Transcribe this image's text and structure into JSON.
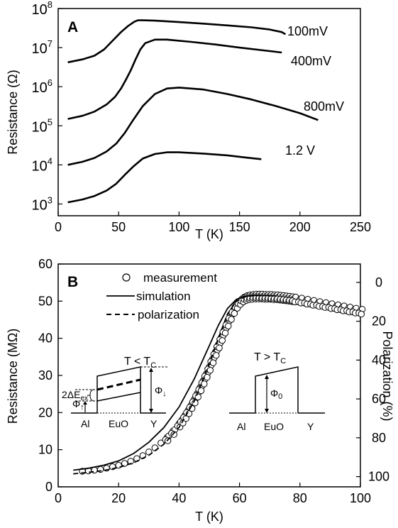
{
  "chart_data": [
    {
      "panel": "A",
      "type": "line",
      "xlabel": "T (K)",
      "ylabel": "Resistance (Ω)",
      "yscale": "log",
      "xlim": [
        0,
        250
      ],
      "ylim": [
        500,
        100000000
      ],
      "x_ticks": [
        0,
        50,
        100,
        150,
        200,
        250
      ],
      "y_ticks": [
        {
          "exp": 3,
          "value": 1000
        },
        {
          "exp": 4,
          "value": 10000
        },
        {
          "exp": 5,
          "value": 100000
        },
        {
          "exp": 6,
          "value": 1000000
        },
        {
          "exp": 7,
          "value": 10000000
        },
        {
          "exp": 8,
          "value": 100000000
        }
      ],
      "series": [
        {
          "name": "100mV",
          "x": [
            8,
            20,
            30,
            38,
            45,
            52,
            58,
            63,
            66,
            70,
            80,
            100,
            120,
            140,
            160,
            175,
            185,
            188
          ],
          "y": [
            4200000,
            5000000,
            6200000,
            9000000,
            15000000,
            25000000,
            36000000,
            46000000,
            50000000,
            50000000,
            49000000,
            45000000,
            41000000,
            37000000,
            33000000,
            29000000,
            25000000,
            22000000
          ]
        },
        {
          "name": "400mV",
          "x": [
            8,
            20,
            30,
            40,
            47,
            52,
            56,
            60,
            64,
            68,
            72,
            80,
            90,
            110,
            130,
            150,
            170,
            185
          ],
          "y": [
            150000,
            180000,
            230000,
            350000,
            550000,
            900000,
            1500000,
            2600000,
            5000000,
            9000000,
            13000000,
            16000000,
            16000000,
            14000000,
            12000000,
            10000000,
            8500000,
            7500000
          ]
        },
        {
          "name": "800mV",
          "x": [
            8,
            20,
            30,
            40,
            48,
            55,
            62,
            70,
            80,
            90,
            100,
            120,
            140,
            160,
            180,
            200,
            215
          ],
          "y": [
            10000,
            12000,
            15000,
            22000,
            35000,
            65000,
            140000,
            320000,
            650000,
            900000,
            950000,
            850000,
            650000,
            470000,
            320000,
            210000,
            140000
          ]
        },
        {
          "name": "1.2 V",
          "x": [
            8,
            20,
            30,
            40,
            48,
            55,
            62,
            70,
            80,
            90,
            100,
            120,
            140,
            155,
            168
          ],
          "y": [
            1100,
            1300,
            1600,
            2200,
            3300,
            5500,
            9000,
            14500,
            19000,
            21000,
            21000,
            19500,
            17500,
            15500,
            14000
          ]
        }
      ],
      "annotations": [
        "A"
      ]
    },
    {
      "panel": "B",
      "type": "scatter",
      "xlabel": "T (K)",
      "ylabel": "Resistance (MΩ)",
      "y2label": "Polarization (%)",
      "xlim": [
        0,
        100
      ],
      "ylim": [
        0,
        60
      ],
      "y2lim_inverted": [
        105.26,
        -9.47
      ],
      "x_ticks": [
        0,
        20,
        40,
        60,
        80,
        100
      ],
      "y_ticks": [
        0,
        10,
        20,
        30,
        40,
        50,
        60
      ],
      "y2_ticks": [
        0,
        20,
        40,
        60,
        80,
        100
      ],
      "legend": [
        "measurement",
        "simulation",
        "polarization"
      ],
      "legend_position": "top-left",
      "series": [
        {
          "name": "measurement",
          "style": "open-circle",
          "x": [
            8,
            10,
            12,
            14,
            16,
            18,
            20,
            22,
            24,
            26,
            28,
            30,
            32,
            34,
            36,
            38,
            40,
            41,
            42,
            43,
            44,
            45,
            46,
            47,
            48,
            49,
            50,
            51,
            52,
            53,
            54,
            55,
            56,
            57,
            58,
            59,
            60,
            61,
            62,
            63,
            64,
            65,
            66,
            67,
            68,
            69,
            70,
            71,
            72,
            73,
            74,
            75,
            76,
            77,
            78,
            80,
            82,
            84,
            86,
            88,
            90,
            92,
            94,
            96,
            98,
            100
          ],
          "y": [
            4.2,
            4.3,
            4.5,
            4.7,
            5.0,
            5.4,
            5.8,
            6.3,
            6.9,
            7.6,
            8.4,
            9.4,
            10.5,
            11.8,
            13.3,
            15.0,
            17.0,
            18.1,
            19.3,
            20.6,
            22.0,
            23.5,
            25.1,
            26.8,
            28.6,
            30.4,
            32.3,
            34.3,
            36.3,
            38.3,
            40.3,
            42.3,
            44.2,
            46.0,
            47.6,
            49.0,
            50.0,
            50.7,
            51.1,
            51.3,
            51.4,
            51.5,
            51.5,
            51.5,
            51.4,
            51.4,
            51.4,
            51.3,
            51.3,
            51.2,
            51.1,
            51.0,
            50.9,
            50.8,
            50.7,
            50.4,
            50.1,
            49.8,
            49.5,
            49.2,
            48.9,
            48.6,
            48.3,
            48.0,
            47.7,
            47.4
          ]
        },
        {
          "name": "simulation",
          "style": "solid",
          "x": [
            5,
            10,
            15,
            20,
            25,
            30,
            35,
            40,
            45,
            50,
            53,
            56,
            59,
            62,
            65,
            68,
            72
          ],
          "y": [
            4.5,
            5.0,
            5.8,
            7.0,
            9.0,
            12.0,
            16.0,
            21.5,
            29.0,
            38.0,
            43.5,
            48.0,
            50.5,
            51.3,
            51.5,
            51.5,
            51.4
          ]
        },
        {
          "name": "polarization",
          "style": "dashed",
          "x": [
            5,
            10,
            15,
            20,
            25,
            30,
            35,
            40,
            45,
            50,
            53,
            56,
            59,
            62,
            65,
            68
          ],
          "y": [
            3.5,
            3.9,
            4.4,
            5.2,
            6.5,
            8.5,
            11.5,
            16.0,
            23.0,
            33.0,
            40.0,
            46.5,
            50.0,
            51.2,
            51.5,
            51.5
          ]
        }
      ],
      "annotations": [
        "B"
      ],
      "inset_left": {
        "title": "T < T",
        "title_sub": "C",
        "labels": [
          "Al",
          "EuO",
          "Y"
        ],
        "delta_label": "2ΔE",
        "delta_sub": "ex",
        "phi_up": "Φ",
        "phi_up_sub": "↑",
        "phi_down": "Φ",
        "phi_down_sub": "↓"
      },
      "inset_right": {
        "title": "T > T",
        "title_sub": "C",
        "labels": [
          "Al",
          "EuO",
          "Y"
        ],
        "phi0": "Φ",
        "phi0_sub": "0"
      }
    }
  ]
}
